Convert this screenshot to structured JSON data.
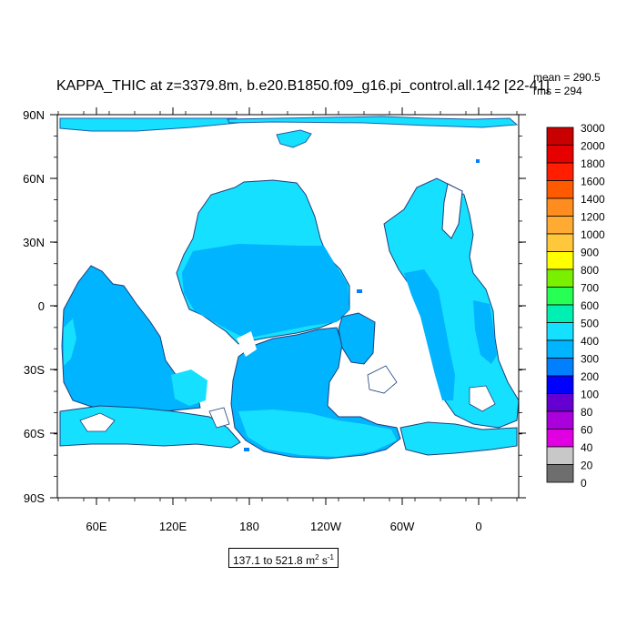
{
  "title": "KAPPA_THIC at z=3379.8m, b.e20.B1850.f09_g16.pi_control.all.142 [22-41]",
  "stats": {
    "mean": "mean = 290.5",
    "rms": "rms = 294"
  },
  "range": {
    "text": "137.1 to 521.8 m",
    "sup1": "2",
    "mid": " s",
    "sup2": "-1"
  },
  "map": {
    "lat_labels": [
      "90N",
      "60N",
      "30N",
      "0",
      "30S",
      "60S",
      "90S"
    ],
    "lon_labels": [
      "60E",
      "120E",
      "180",
      "120W",
      "60W",
      "0"
    ],
    "colors": {
      "ocean_300": "#00b4ff",
      "ocean_400": "#16e0ff",
      "ocean_200": "#0080ff",
      "land": "#ffffff"
    }
  },
  "colorbar": {
    "levels": [
      "3000",
      "2000",
      "1800",
      "1600",
      "1400",
      "1200",
      "1000",
      "900",
      "800",
      "700",
      "600",
      "500",
      "400",
      "300",
      "200",
      "100",
      "80",
      "60",
      "40",
      "20",
      "0"
    ],
    "colors": [
      "#c80000",
      "#e60000",
      "#ff1e00",
      "#ff5a00",
      "#ff8c1e",
      "#ffaa32",
      "#ffc83c",
      "#ffff00",
      "#78f000",
      "#28ff55",
      "#00f0b4",
      "#16e0ff",
      "#00b4ff",
      "#0080ff",
      "#0000ff",
      "#6400d2",
      "#aa00dc",
      "#e100e1",
      "#c8c8c8",
      "#6e6e6e"
    ]
  }
}
